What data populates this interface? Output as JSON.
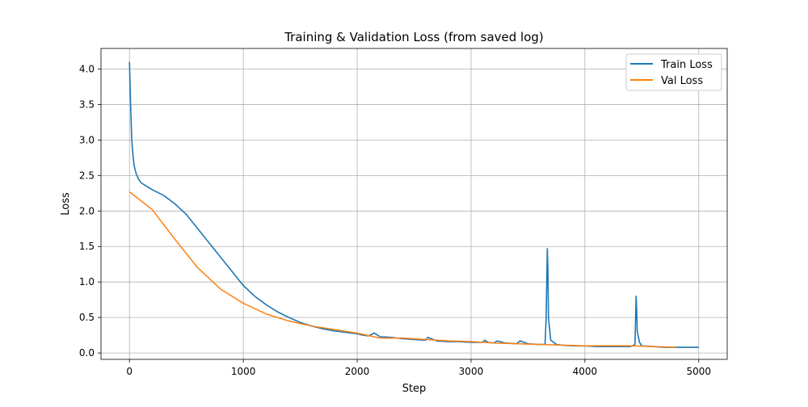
{
  "chart_data": {
    "type": "line",
    "title": "Training & Validation Loss (from saved log)",
    "xlabel": "Step",
    "ylabel": "Loss",
    "xlim": [
      -250,
      5250
    ],
    "ylim": [
      -0.09,
      4.29
    ],
    "xticks": [
      0,
      1000,
      2000,
      3000,
      4000,
      5000
    ],
    "yticks": [
      0.0,
      0.5,
      1.0,
      1.5,
      2.0,
      2.5,
      3.0,
      3.5,
      4.0
    ],
    "xtick_labels": [
      "0",
      "1000",
      "2000",
      "3000",
      "4000",
      "5000"
    ],
    "ytick_labels": [
      "0.0",
      "0.5",
      "1.0",
      "1.5",
      "2.0",
      "2.5",
      "3.0",
      "3.5",
      "4.0"
    ],
    "grid": true,
    "legend_position": "top-right",
    "series": [
      {
        "name": "Train Loss",
        "color": "#1f77b4",
        "x": [
          0,
          10,
          20,
          30,
          40,
          50,
          60,
          80,
          100,
          150,
          200,
          300,
          400,
          500,
          600,
          700,
          800,
          900,
          1000,
          1100,
          1200,
          1300,
          1400,
          1500,
          1600,
          1700,
          1800,
          1900,
          2000,
          2050,
          2100,
          2150,
          2200,
          2300,
          2400,
          2500,
          2600,
          2620,
          2700,
          2800,
          2900,
          3000,
          3100,
          3120,
          3150,
          3200,
          3230,
          3300,
          3400,
          3430,
          3500,
          3600,
          3650,
          3660,
          3670,
          3675,
          3680,
          3700,
          3750,
          3800,
          3900,
          4000,
          4100,
          4200,
          4300,
          4400,
          4440,
          4450,
          4455,
          4460,
          4480,
          4500,
          4600,
          4700,
          4800,
          4900,
          5000
        ],
        "y": [
          4.1,
          3.5,
          3.0,
          2.8,
          2.65,
          2.58,
          2.52,
          2.45,
          2.4,
          2.35,
          2.3,
          2.22,
          2.1,
          1.95,
          1.75,
          1.55,
          1.35,
          1.15,
          0.95,
          0.8,
          0.68,
          0.58,
          0.5,
          0.43,
          0.38,
          0.34,
          0.31,
          0.29,
          0.27,
          0.25,
          0.24,
          0.28,
          0.23,
          0.22,
          0.2,
          0.19,
          0.18,
          0.22,
          0.17,
          0.16,
          0.16,
          0.15,
          0.15,
          0.18,
          0.15,
          0.14,
          0.17,
          0.14,
          0.13,
          0.17,
          0.13,
          0.12,
          0.12,
          0.5,
          1.47,
          1.2,
          0.5,
          0.18,
          0.12,
          0.11,
          0.1,
          0.1,
          0.09,
          0.09,
          0.09,
          0.09,
          0.12,
          0.8,
          0.6,
          0.3,
          0.15,
          0.1,
          0.09,
          0.08,
          0.08,
          0.08,
          0.08
        ]
      },
      {
        "name": "Val Loss",
        "color": "#ff7f0e",
        "x": [
          0,
          200,
          400,
          600,
          800,
          1000,
          1200,
          1400,
          1600,
          1800,
          2000,
          2200,
          2400,
          2600,
          2800,
          3000,
          3200,
          3400,
          3600,
          3800,
          4000,
          4200,
          4400,
          4600,
          4800
        ],
        "y": [
          2.27,
          2.02,
          1.6,
          1.2,
          0.9,
          0.7,
          0.55,
          0.45,
          0.38,
          0.33,
          0.28,
          0.21,
          0.21,
          0.19,
          0.17,
          0.16,
          0.14,
          0.13,
          0.12,
          0.11,
          0.1,
          0.1,
          0.1,
          0.09,
          0.08
        ]
      }
    ]
  }
}
